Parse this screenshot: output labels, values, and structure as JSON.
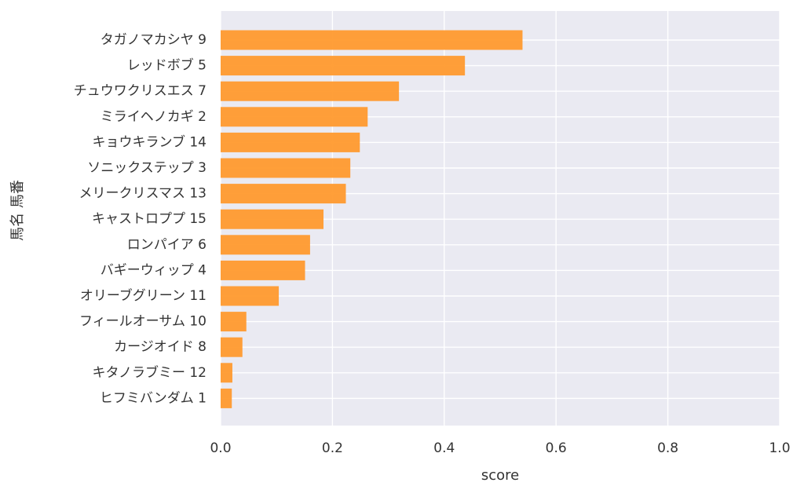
{
  "chart_data": {
    "type": "bar",
    "orientation": "horizontal",
    "title": "",
    "xlabel": "score",
    "ylabel": "馬名 馬番",
    "xlim": [
      0.0,
      1.0
    ],
    "xticks": [
      0.0,
      0.2,
      0.4,
      0.6,
      0.8,
      1.0
    ],
    "xtick_labels": [
      "0.0",
      "0.2",
      "0.4",
      "0.6",
      "0.8",
      "1.0"
    ],
    "grid": true,
    "background": "#eaeaf2",
    "bar_color": "#ff9a2e",
    "categories": [
      "タガノマカシヤ 9",
      "レッドボブ 5",
      "チュウワクリスエス 7",
      "ミライヘノカギ 2",
      "キョウキランブ 14",
      "ソニックステップ 3",
      "メリークリスマス 13",
      "キャストロププ 15",
      "ロンパイア 6",
      "バギーウィップ 4",
      "オリーブグリーン 11",
      "フィールオーサム 10",
      "カージオイド 8",
      "キタノラブミー 12",
      "ヒフミバンダム 1"
    ],
    "values": [
      0.54,
      0.437,
      0.319,
      0.263,
      0.249,
      0.232,
      0.224,
      0.184,
      0.16,
      0.151,
      0.104,
      0.046,
      0.039,
      0.021,
      0.02
    ]
  }
}
